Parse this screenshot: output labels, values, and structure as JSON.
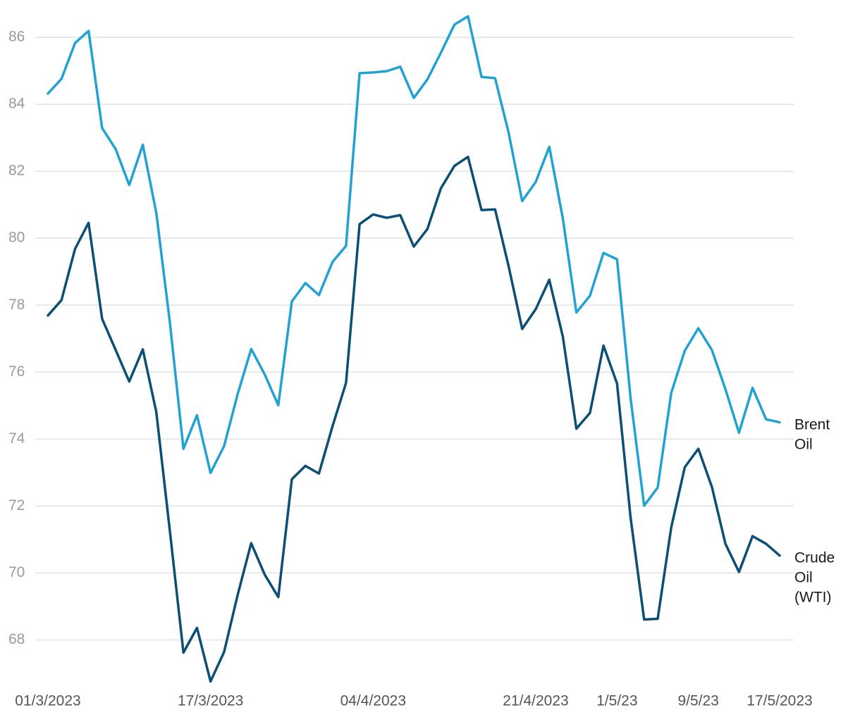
{
  "chart_data": {
    "type": "line",
    "categories": [
      "01/3/2023",
      null,
      null,
      null,
      null,
      null,
      null,
      null,
      null,
      null,
      null,
      null,
      "17/3/2023",
      null,
      null,
      null,
      null,
      null,
      null,
      null,
      null,
      null,
      null,
      null,
      "04/4/2023",
      null,
      null,
      null,
      null,
      null,
      null,
      null,
      null,
      null,
      null,
      null,
      "21/4/2023",
      null,
      null,
      null,
      null,
      null,
      "1/5/23",
      null,
      null,
      null,
      null,
      null,
      "9/5/23",
      null,
      null,
      null,
      null,
      null,
      "17/5/2023"
    ],
    "series": [
      {
        "name": "Brent Oil",
        "color": "#22a2d2",
        "values": [
          84.32,
          84.76,
          85.83,
          86.19,
          83.29,
          82.66,
          81.59,
          82.79,
          80.75,
          77.48,
          73.71,
          74.71,
          72.99,
          73.79,
          75.34,
          76.69,
          75.93,
          75.01,
          78.11,
          78.66,
          78.3,
          79.29,
          79.77,
          84.93,
          84.95,
          84.99,
          85.12,
          84.19,
          84.74,
          85.54,
          86.38,
          86.63,
          84.82,
          84.78,
          83.15,
          81.11,
          81.68,
          82.73,
          80.59,
          77.78,
          78.28,
          79.56,
          79.37,
          75.22,
          72.01,
          72.55,
          75.38,
          76.64,
          77.31,
          76.66,
          75.49,
          74.19,
          75.53,
          74.59,
          74.5
        ]
      },
      {
        "name": "Crude Oil (WTI)",
        "color": "#0d4e74",
        "values": [
          77.69,
          78.15,
          79.68,
          80.46,
          77.59,
          76.66,
          75.72,
          76.68,
          74.8,
          71.25,
          67.62,
          68.36,
          66.76,
          67.64,
          69.34,
          70.89,
          69.95,
          69.28,
          72.8,
          73.2,
          72.97,
          74.38,
          75.68,
          80.42,
          80.71,
          80.61,
          80.69,
          79.75,
          80.27,
          81.49,
          82.16,
          82.43,
          80.84,
          80.86,
          79.16,
          77.29,
          77.88,
          78.76,
          77.06,
          74.31,
          74.78,
          76.79,
          75.66,
          71.65,
          68.61,
          68.63,
          71.36,
          73.16,
          73.71,
          72.57,
          70.87,
          70.03,
          71.1,
          70.87,
          70.52
        ]
      }
    ],
    "ylim": [
      66.6,
      86.8
    ],
    "yticks": [
      68,
      70,
      72,
      74,
      76,
      78,
      80,
      82,
      84,
      86
    ],
    "grid": true
  }
}
